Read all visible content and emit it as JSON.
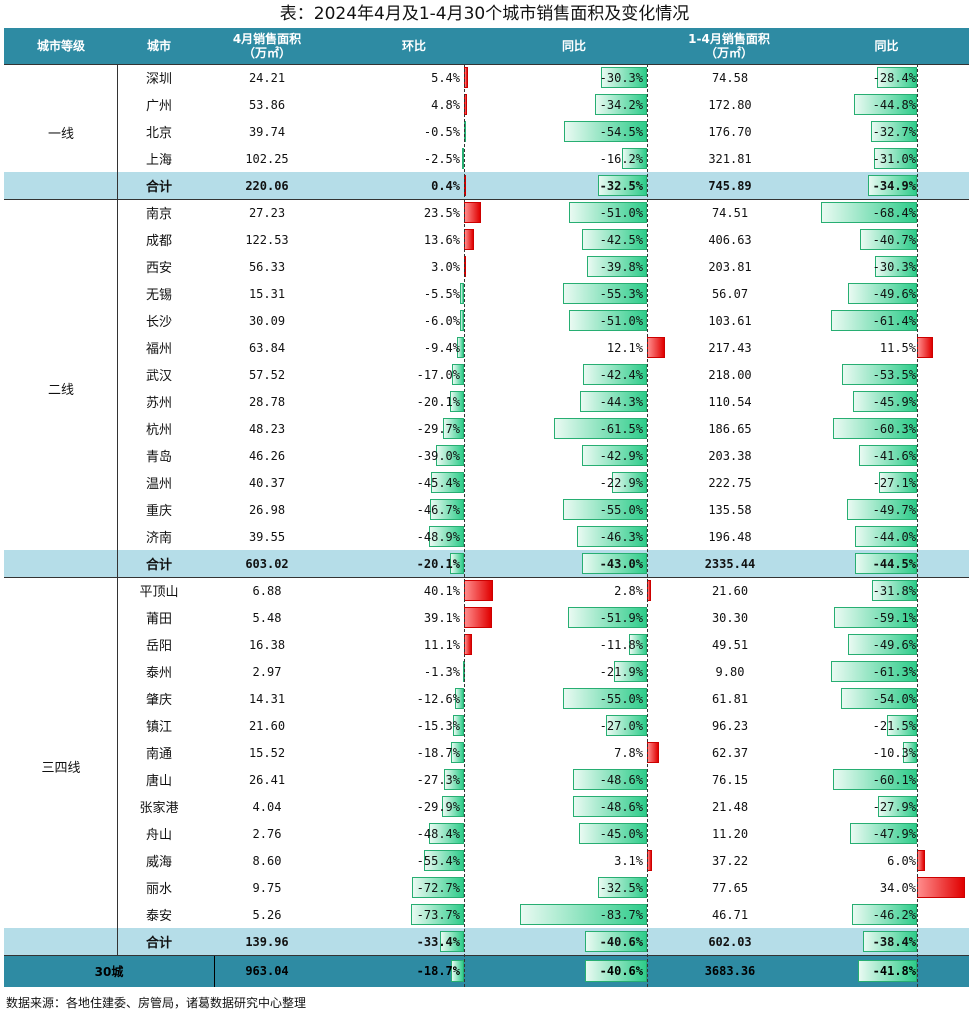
{
  "title": "表：2024年4月及1-4月30个城市销售面积及变化情况",
  "headers": {
    "tier": "城市等级",
    "city": "城市",
    "area": "4月销售面积\n（万㎡）",
    "mom": "环比",
    "yoy": "同比",
    "ytd": "1-4月销售面积\n（万㎡）",
    "ytd_yoy": "同比"
  },
  "tiers": [
    "一线",
    "二线",
    "三四线"
  ],
  "rows": [
    {
      "city": "深圳",
      "area": "24.21",
      "mom": "5.4%",
      "mom_v": 5.4,
      "yoy": "-30.3%",
      "yoy_v": -30.3,
      "ytd": "74.58",
      "yy2": "-28.4%",
      "yy2_v": -28.4
    },
    {
      "city": "广州",
      "area": "53.86",
      "mom": "4.8%",
      "mom_v": 4.8,
      "yoy": "-34.2%",
      "yoy_v": -34.2,
      "ytd": "172.80",
      "yy2": "-44.8%",
      "yy2_v": -44.8
    },
    {
      "city": "北京",
      "area": "39.74",
      "mom": "-0.5%",
      "mom_v": -0.5,
      "yoy": "-54.5%",
      "yoy_v": -54.5,
      "ytd": "176.70",
      "yy2": "-32.7%",
      "yy2_v": -32.7
    },
    {
      "city": "上海",
      "area": "102.25",
      "mom": "-2.5%",
      "mom_v": -2.5,
      "yoy": "-16.2%",
      "yoy_v": -16.2,
      "ytd": "321.81",
      "yy2": "-31.0%",
      "yy2_v": -31.0
    },
    {
      "city": "合计",
      "area": "220.06",
      "mom": "0.4%",
      "mom_v": 0.4,
      "yoy": "-32.5%",
      "yoy_v": -32.5,
      "ytd": "745.89",
      "yy2": "-34.9%",
      "yy2_v": -34.9,
      "sub": true
    },
    {
      "city": "南京",
      "area": "27.23",
      "mom": "23.5%",
      "mom_v": 23.5,
      "yoy": "-51.0%",
      "yoy_v": -51.0,
      "ytd": "74.51",
      "yy2": "-68.4%",
      "yy2_v": -68.4
    },
    {
      "city": "成都",
      "area": "122.53",
      "mom": "13.6%",
      "mom_v": 13.6,
      "yoy": "-42.5%",
      "yoy_v": -42.5,
      "ytd": "406.63",
      "yy2": "-40.7%",
      "yy2_v": -40.7
    },
    {
      "city": "西安",
      "area": "56.33",
      "mom": "3.0%",
      "mom_v": 3.0,
      "yoy": "-39.8%",
      "yoy_v": -39.8,
      "ytd": "203.81",
      "yy2": "-30.3%",
      "yy2_v": -30.3
    },
    {
      "city": "无锡",
      "area": "15.31",
      "mom": "-5.5%",
      "mom_v": -5.5,
      "yoy": "-55.3%",
      "yoy_v": -55.3,
      "ytd": "56.07",
      "yy2": "-49.6%",
      "yy2_v": -49.6
    },
    {
      "city": "长沙",
      "area": "30.09",
      "mom": "-6.0%",
      "mom_v": -6.0,
      "yoy": "-51.0%",
      "yoy_v": -51.0,
      "ytd": "103.61",
      "yy2": "-61.4%",
      "yy2_v": -61.4
    },
    {
      "city": "福州",
      "area": "63.84",
      "mom": "-9.4%",
      "mom_v": -9.4,
      "yoy": "12.1%",
      "yoy_v": 12.1,
      "ytd": "217.43",
      "yy2": "11.5%",
      "yy2_v": 11.5
    },
    {
      "city": "武汉",
      "area": "57.52",
      "mom": "-17.0%",
      "mom_v": -17.0,
      "yoy": "-42.4%",
      "yoy_v": -42.4,
      "ytd": "218.00",
      "yy2": "-53.5%",
      "yy2_v": -53.5
    },
    {
      "city": "苏州",
      "area": "28.78",
      "mom": "-20.1%",
      "mom_v": -20.1,
      "yoy": "-44.3%",
      "yoy_v": -44.3,
      "ytd": "110.54",
      "yy2": "-45.9%",
      "yy2_v": -45.9
    },
    {
      "city": "杭州",
      "area": "48.23",
      "mom": "-29.7%",
      "mom_v": -29.7,
      "yoy": "-61.5%",
      "yoy_v": -61.5,
      "ytd": "186.65",
      "yy2": "-60.3%",
      "yy2_v": -60.3
    },
    {
      "city": "青岛",
      "area": "46.26",
      "mom": "-39.0%",
      "mom_v": -39.0,
      "yoy": "-42.9%",
      "yoy_v": -42.9,
      "ytd": "203.38",
      "yy2": "-41.6%",
      "yy2_v": -41.6
    },
    {
      "city": "温州",
      "area": "40.37",
      "mom": "-45.4%",
      "mom_v": -45.4,
      "yoy": "-22.9%",
      "yoy_v": -22.9,
      "ytd": "222.75",
      "yy2": "-27.1%",
      "yy2_v": -27.1
    },
    {
      "city": "重庆",
      "area": "26.98",
      "mom": "-46.7%",
      "mom_v": -46.7,
      "yoy": "-55.0%",
      "yoy_v": -55.0,
      "ytd": "135.58",
      "yy2": "-49.7%",
      "yy2_v": -49.7
    },
    {
      "city": "济南",
      "area": "39.55",
      "mom": "-48.9%",
      "mom_v": -48.9,
      "yoy": "-46.3%",
      "yoy_v": -46.3,
      "ytd": "196.48",
      "yy2": "-44.0%",
      "yy2_v": -44.0
    },
    {
      "city": "合计",
      "area": "603.02",
      "mom": "-20.1%",
      "mom_v": -20.1,
      "yoy": "-43.0%",
      "yoy_v": -43.0,
      "ytd": "2335.44",
      "yy2": "-44.5%",
      "yy2_v": -44.5,
      "sub": true
    },
    {
      "city": "平顶山",
      "area": "6.88",
      "mom": "40.1%",
      "mom_v": 40.1,
      "yoy": "2.8%",
      "yoy_v": 2.8,
      "ytd": "21.60",
      "yy2": "-31.8%",
      "yy2_v": -31.8
    },
    {
      "city": "莆田",
      "area": "5.48",
      "mom": "39.1%",
      "mom_v": 39.1,
      "yoy": "-51.9%",
      "yoy_v": -51.9,
      "ytd": "30.30",
      "yy2": "-59.1%",
      "yy2_v": -59.1
    },
    {
      "city": "岳阳",
      "area": "16.38",
      "mom": "11.1%",
      "mom_v": 11.1,
      "yoy": "-11.8%",
      "yoy_v": -11.8,
      "ytd": "49.51",
      "yy2": "-49.6%",
      "yy2_v": -49.6
    },
    {
      "city": "泰州",
      "area": "2.97",
      "mom": "-1.3%",
      "mom_v": -1.3,
      "yoy": "-21.9%",
      "yoy_v": -21.9,
      "ytd": "9.80",
      "yy2": "-61.3%",
      "yy2_v": -61.3
    },
    {
      "city": "肇庆",
      "area": "14.31",
      "mom": "-12.6%",
      "mom_v": -12.6,
      "yoy": "-55.0%",
      "yoy_v": -55.0,
      "ytd": "61.81",
      "yy2": "-54.0%",
      "yy2_v": -54.0
    },
    {
      "city": "镇江",
      "area": "21.60",
      "mom": "-15.3%",
      "mom_v": -15.3,
      "yoy": "-27.0%",
      "yoy_v": -27.0,
      "ytd": "96.23",
      "yy2": "-21.5%",
      "yy2_v": -21.5
    },
    {
      "city": "南通",
      "area": "15.52",
      "mom": "-18.7%",
      "mom_v": -18.7,
      "yoy": "7.8%",
      "yoy_v": 7.8,
      "ytd": "62.37",
      "yy2": "-10.3%",
      "yy2_v": -10.3
    },
    {
      "city": "唐山",
      "area": "26.41",
      "mom": "-27.3%",
      "mom_v": -27.3,
      "yoy": "-48.6%",
      "yoy_v": -48.6,
      "ytd": "76.15",
      "yy2": "-60.1%",
      "yy2_v": -60.1
    },
    {
      "city": "张家港",
      "area": "4.04",
      "mom": "-29.9%",
      "mom_v": -29.9,
      "yoy": "-48.6%",
      "yoy_v": -48.6,
      "ytd": "21.48",
      "yy2": "-27.9%",
      "yy2_v": -27.9
    },
    {
      "city": "舟山",
      "area": "2.76",
      "mom": "-48.4%",
      "mom_v": -48.4,
      "yoy": "-45.0%",
      "yoy_v": -45.0,
      "ytd": "11.20",
      "yy2": "-47.9%",
      "yy2_v": -47.9
    },
    {
      "city": "威海",
      "area": "8.60",
      "mom": "-55.4%",
      "mom_v": -55.4,
      "yoy": "3.1%",
      "yoy_v": 3.1,
      "ytd": "37.22",
      "yy2": "6.0%",
      "yy2_v": 6.0
    },
    {
      "city": "丽水",
      "area": "9.75",
      "mom": "-72.7%",
      "mom_v": -72.7,
      "yoy": "-32.5%",
      "yoy_v": -32.5,
      "ytd": "77.65",
      "yy2": "34.0%",
      "yy2_v": 34.0
    },
    {
      "city": "泰安",
      "area": "5.26",
      "mom": "-73.7%",
      "mom_v": -73.7,
      "yoy": "-83.7%",
      "yoy_v": -83.7,
      "ytd": "46.71",
      "yy2": "-46.2%",
      "yy2_v": -46.2
    },
    {
      "city": "合计",
      "area": "139.96",
      "mom": "-33.4%",
      "mom_v": -33.4,
      "yoy": "-40.6%",
      "yoy_v": -40.6,
      "ytd": "602.03",
      "yy2": "-38.4%",
      "yy2_v": -38.4,
      "sub": true
    }
  ],
  "total": {
    "label": "30城",
    "area": "963.04",
    "mom": "-18.7%",
    "mom_v": -18.7,
    "yoy": "-40.6%",
    "yoy_v": -40.6,
    "ytd": "3683.36",
    "yy2": "-41.8%",
    "yy2_v": -41.8
  },
  "source": "数据来源：各地住建委、房管局，诸葛数据研究中心整理",
  "colors": {
    "header": "#2e8ba3",
    "subtotal": "#b5dde8",
    "positive_bar": "#e00000",
    "negative_bar": "#2ecc8a"
  }
}
